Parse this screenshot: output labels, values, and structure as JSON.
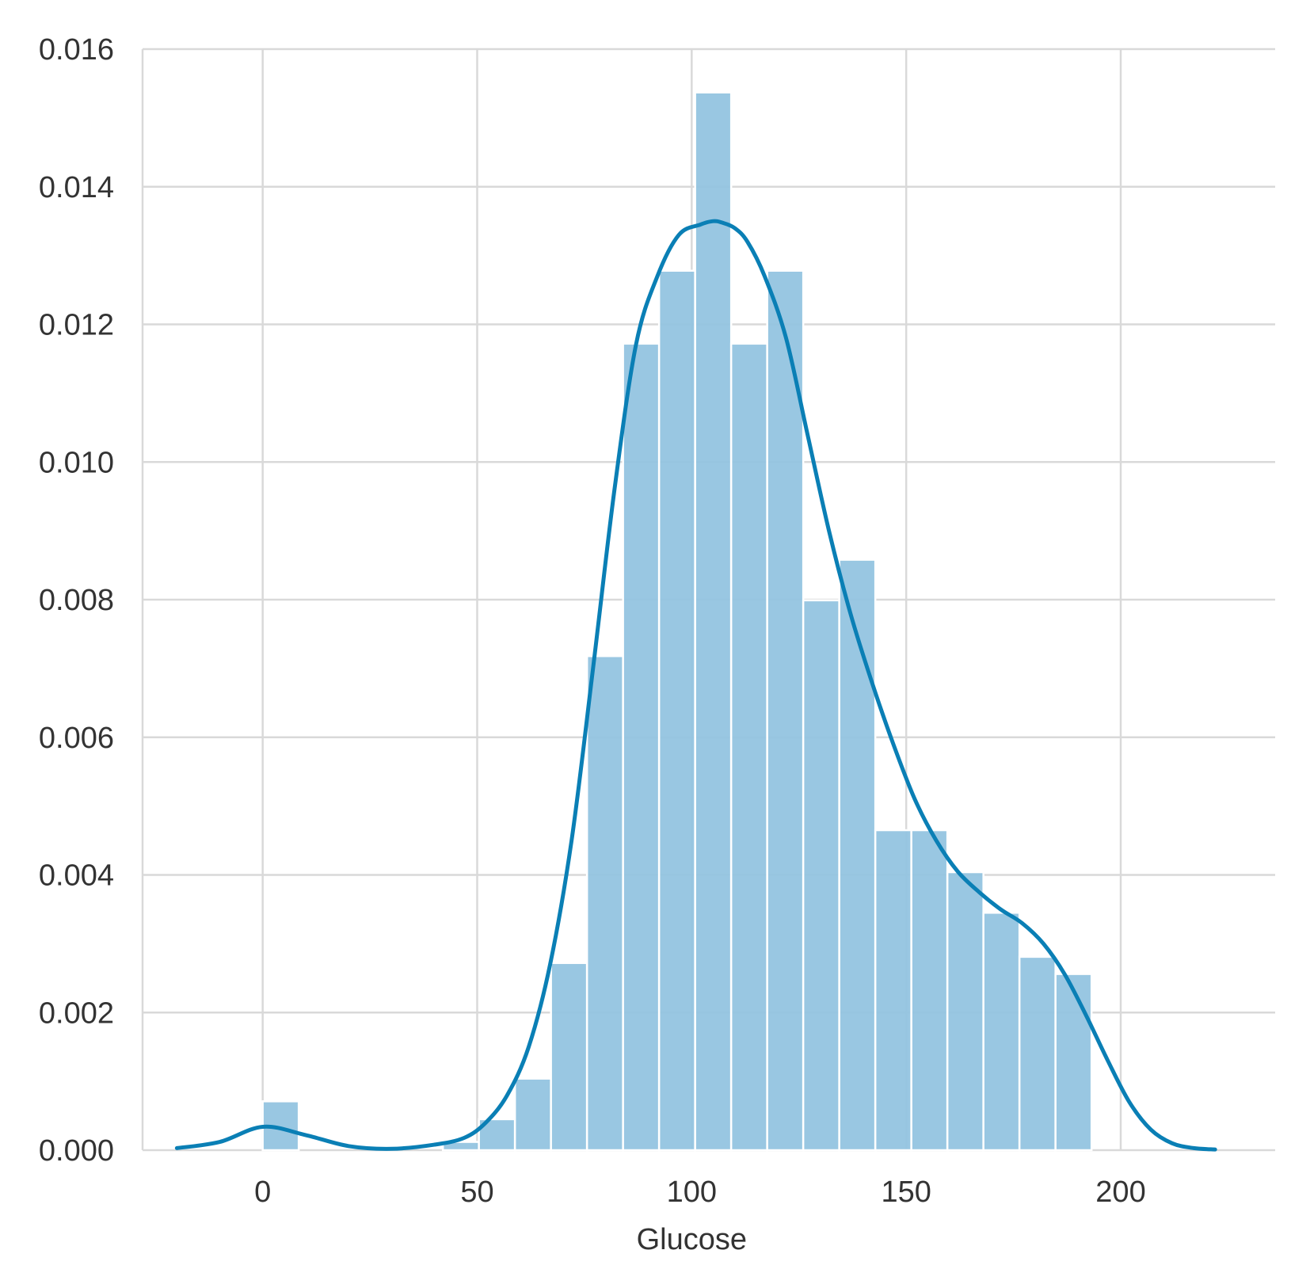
{
  "chart_data": {
    "type": "histogram",
    "xlabel": "Glucose",
    "ylabel": "",
    "xlim": [
      -28,
      236
    ],
    "ylim": [
      0,
      0.016
    ],
    "xticks": [
      0,
      50,
      100,
      150,
      200
    ],
    "xtick_labels": [
      "0",
      "50",
      "100",
      "150",
      "200"
    ],
    "yticks": [
      0.0,
      0.002,
      0.004,
      0.006,
      0.008,
      0.01,
      0.012,
      0.014,
      0.016
    ],
    "ytick_labels": [
      "0.000",
      "0.002",
      "0.004",
      "0.006",
      "0.008",
      "0.010",
      "0.012",
      "0.014",
      "0.016"
    ],
    "grid": true,
    "bar_color": "#93c4e0",
    "kde_color": "#0a7fb5",
    "grid_color": "#d9d9d9",
    "bins": [
      {
        "x0": 0.0,
        "x1": 8.4,
        "value": 0.00071
      },
      {
        "x0": 8.4,
        "x1": 16.8,
        "value": 0.0
      },
      {
        "x0": 16.8,
        "x1": 25.2,
        "value": 0.0
      },
      {
        "x0": 25.2,
        "x1": 33.6,
        "value": 0.0
      },
      {
        "x0": 33.6,
        "x1": 42.0,
        "value": 0.0
      },
      {
        "x0": 42.0,
        "x1": 50.4,
        "value": 0.00012
      },
      {
        "x0": 50.4,
        "x1": 58.8,
        "value": 0.00045
      },
      {
        "x0": 58.8,
        "x1": 67.2,
        "value": 0.00104
      },
      {
        "x0": 67.2,
        "x1": 75.6,
        "value": 0.00272
      },
      {
        "x0": 75.6,
        "x1": 84.0,
        "value": 0.00718
      },
      {
        "x0": 84.0,
        "x1": 92.4,
        "value": 0.01172
      },
      {
        "x0": 92.4,
        "x1": 100.8,
        "value": 0.01278
      },
      {
        "x0": 100.8,
        "x1": 109.2,
        "value": 0.01537
      },
      {
        "x0": 109.2,
        "x1": 117.6,
        "value": 0.01172
      },
      {
        "x0": 117.6,
        "x1": 126.0,
        "value": 0.01278
      },
      {
        "x0": 126.0,
        "x1": 134.4,
        "value": 0.00799
      },
      {
        "x0": 134.4,
        "x1": 142.8,
        "value": 0.00858
      },
      {
        "x0": 142.8,
        "x1": 151.2,
        "value": 0.00465
      },
      {
        "x0": 151.2,
        "x1": 159.6,
        "value": 0.00465
      },
      {
        "x0": 159.6,
        "x1": 168.0,
        "value": 0.00404
      },
      {
        "x0": 168.0,
        "x1": 176.4,
        "value": 0.00345
      },
      {
        "x0": 176.4,
        "x1": 184.8,
        "value": 0.00281
      },
      {
        "x0": 184.8,
        "x1": 193.2,
        "value": 0.00256
      }
    ],
    "kde": {
      "x": [
        -20,
        -10,
        0,
        10,
        20,
        30,
        40,
        47,
        52,
        57,
        62,
        67,
        72,
        77,
        82,
        87,
        92,
        97,
        102,
        105,
        107,
        110,
        113,
        117,
        122,
        127,
        132,
        137,
        142,
        147,
        152,
        157,
        162,
        167,
        172,
        177,
        182,
        187,
        192,
        197,
        202,
        207,
        212,
        217,
        222
      ],
      "y": [
        3e-05,
        0.00012,
        0.00034,
        0.00022,
        6e-05,
        2e-05,
        8e-05,
        0.00018,
        0.0004,
        0.0008,
        0.0015,
        0.0027,
        0.0045,
        0.007,
        0.0096,
        0.0117,
        0.0127,
        0.0133,
        0.01345,
        0.0135,
        0.01348,
        0.0134,
        0.0132,
        0.0127,
        0.0118,
        0.0104,
        0.009,
        0.0078,
        0.0068,
        0.0059,
        0.0051,
        0.0045,
        0.00405,
        0.00375,
        0.0035,
        0.0033,
        0.003,
        0.00255,
        0.00195,
        0.0013,
        0.0007,
        0.0003,
        0.0001,
        3e-05,
        1e-05
      ]
    }
  }
}
